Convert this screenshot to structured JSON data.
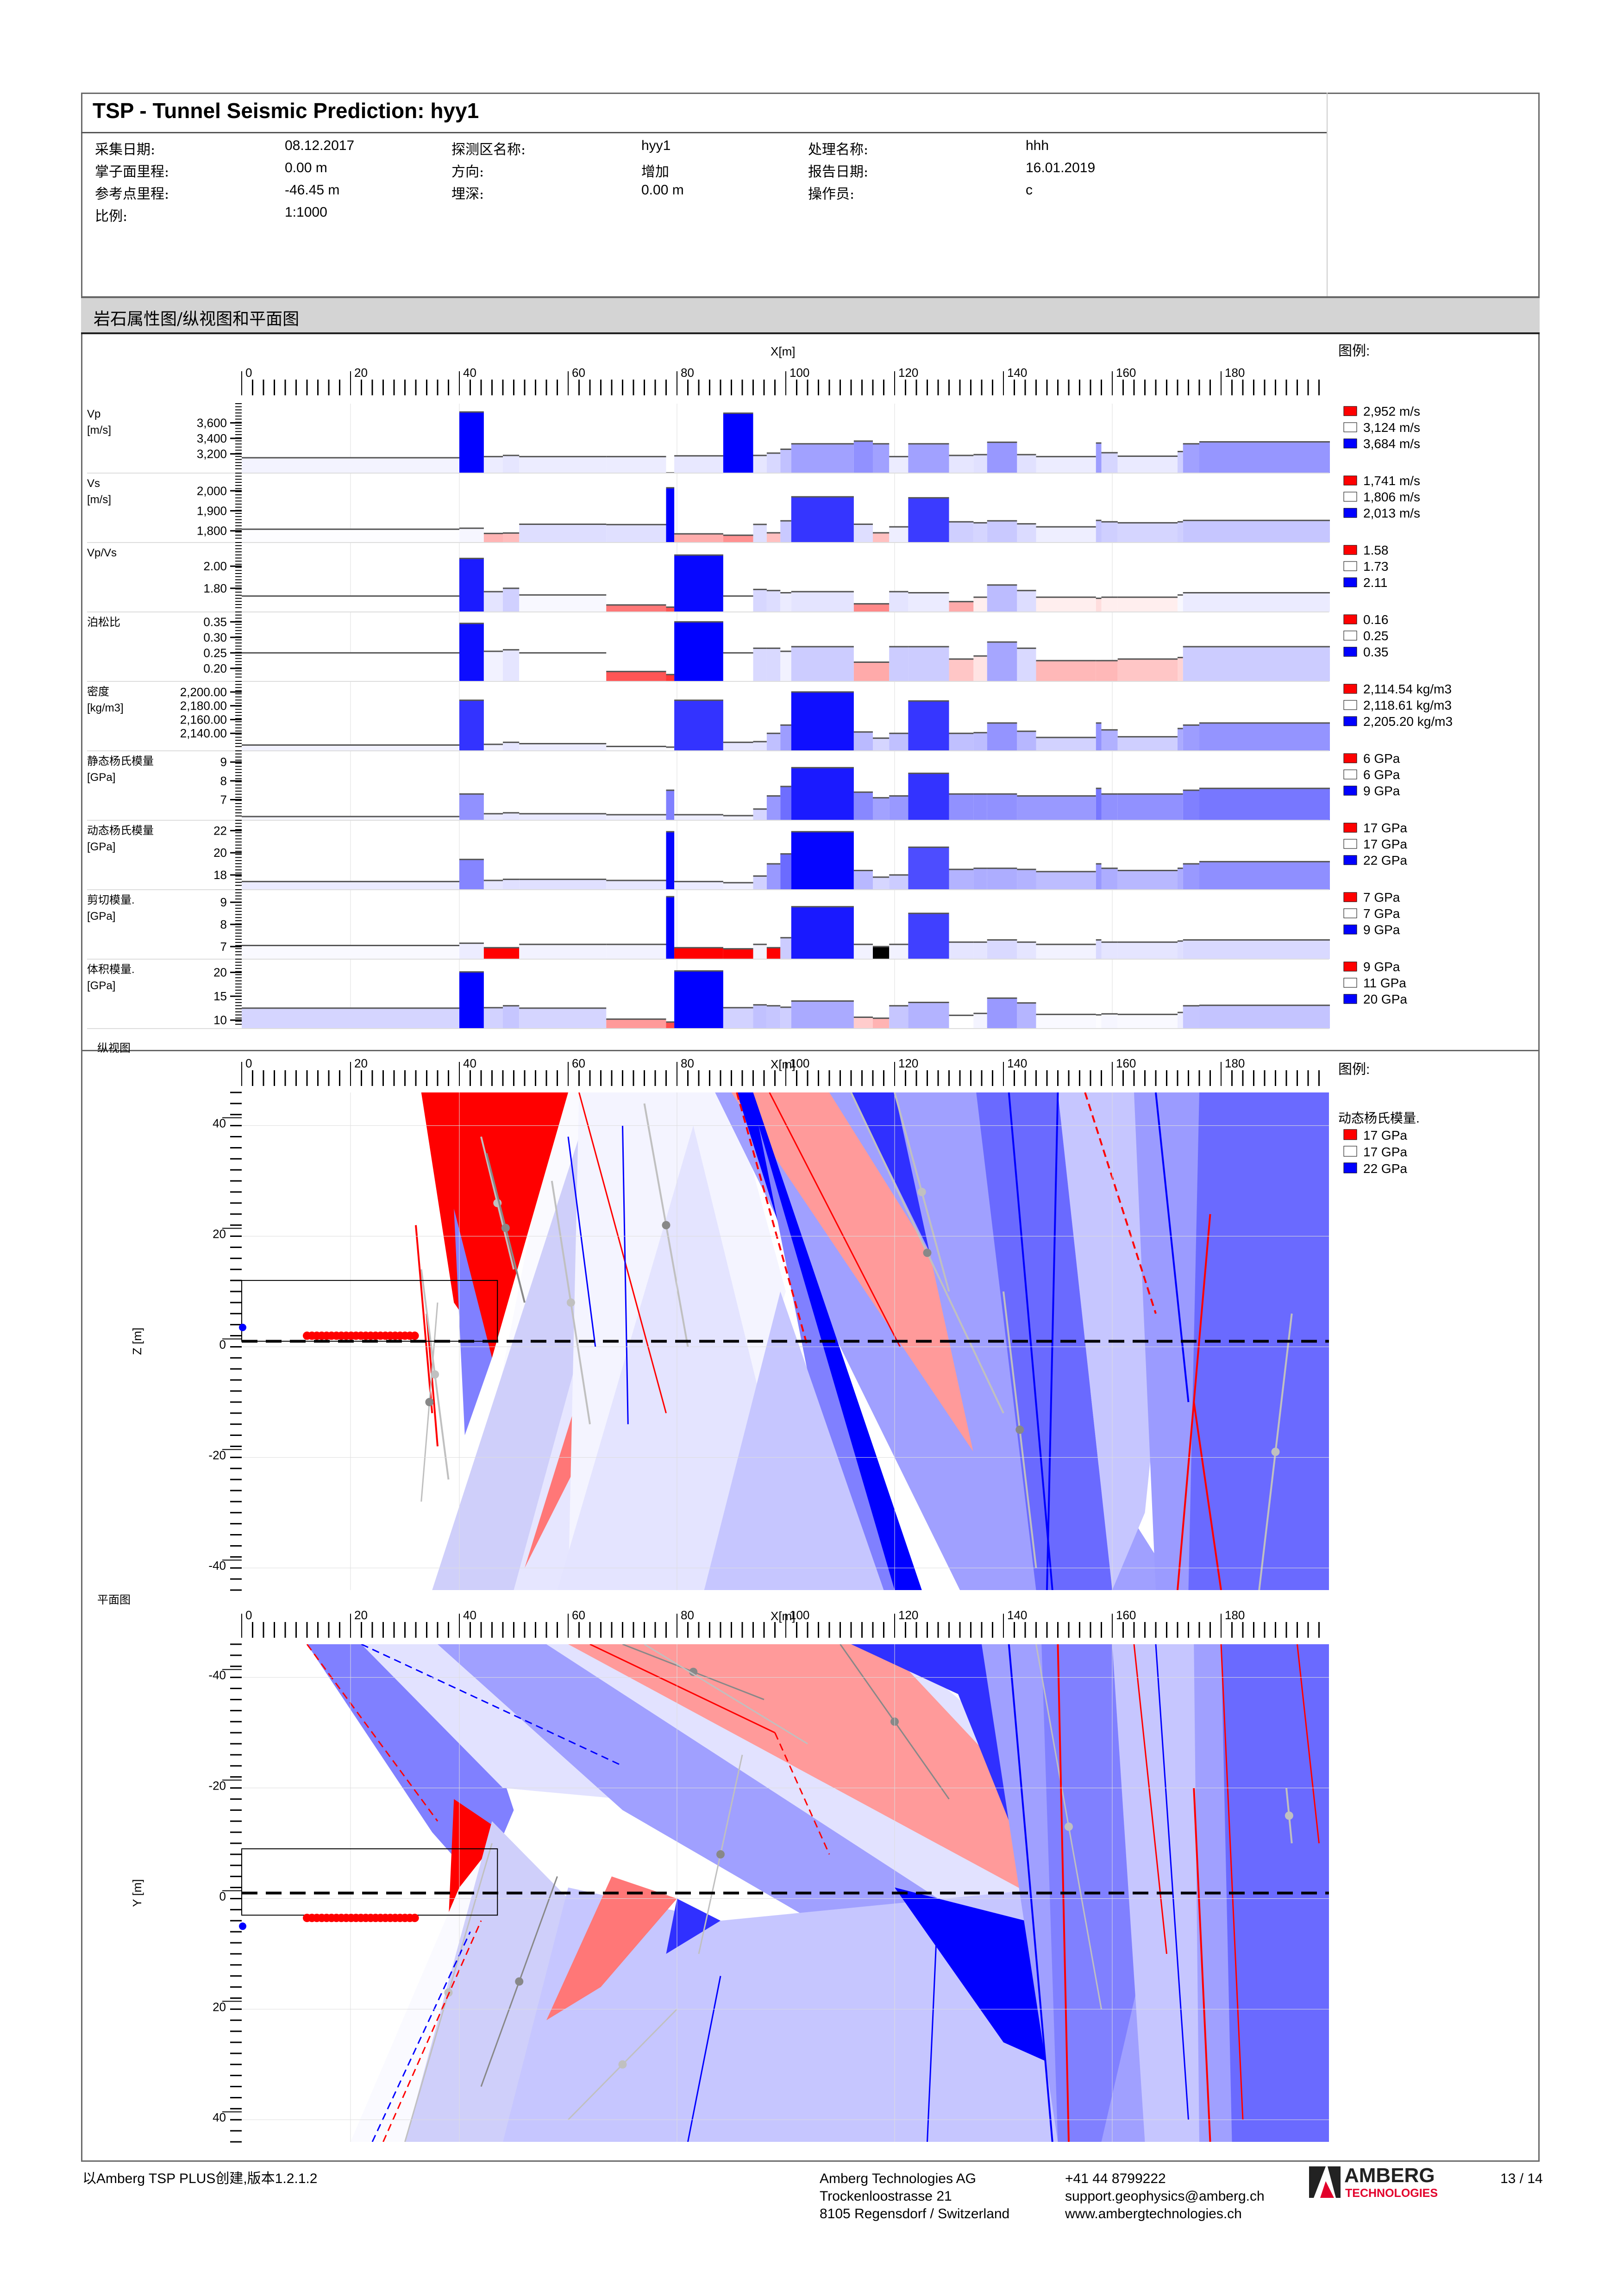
{
  "header": {
    "title": "TSP - Tunnel Seismic Prediction: hyy1",
    "fields": [
      {
        "label": "采集日期:",
        "value": "08.12.2017"
      },
      {
        "label": "掌子面里程:",
        "value": "0.00 m"
      },
      {
        "label": "参考点里程:",
        "value": "-46.45 m"
      },
      {
        "label": "比例:",
        "value": "1:1000"
      },
      {
        "label": "探测区名称:",
        "value": "hyy1"
      },
      {
        "label": "方向:",
        "value": "增加"
      },
      {
        "label": "埋深:",
        "value": "0.00 m"
      },
      {
        "label": "处理名称:",
        "value": "hhh"
      },
      {
        "label": "报告日期:",
        "value": "16.01.2019"
      },
      {
        "label": "操作员:",
        "value": "c"
      }
    ]
  },
  "section_title": "岩石属性图/纵视图和平面图",
  "legend_title": "图例:",
  "xaxis_label": "X[m]",
  "footer": {
    "created_with": "以Amberg TSP PLUS创建,版本1.2.1.2",
    "company": [
      "Amberg Technologies AG",
      "Trockenloostrasse 21",
      "8105 Regensdorf / Switzerland"
    ],
    "contact": [
      "+41 44 8799222",
      "support.geophysics@amberg.ch",
      "www.ambergtechnologies.ch"
    ],
    "logo_text": "AMBERG",
    "logo_sub": "TECHNOLOGIES",
    "page": "13 / 14"
  },
  "colors": {
    "red": "#ff0000",
    "blue": "#0000ff",
    "white": "#ffffff",
    "accent_logo": "#e2002a"
  },
  "chart_data": [
    {
      "type": "bar",
      "title": "岩石属性图",
      "xlabel": "X[m]",
      "xlim": [
        0,
        200
      ],
      "xticks": [
        0,
        20,
        40,
        60,
        80,
        100,
        120,
        140,
        160,
        180
      ],
      "segments_x": [
        [
          0,
          40
        ],
        [
          40,
          44.5
        ],
        [
          44.5,
          48
        ],
        [
          48,
          51
        ],
        [
          51,
          67
        ],
        [
          67,
          78
        ],
        [
          78,
          79.5
        ],
        [
          79.5,
          88.5
        ],
        [
          88.5,
          94
        ],
        [
          94,
          96.5
        ],
        [
          96.5,
          99
        ],
        [
          99,
          101
        ],
        [
          101,
          112.5
        ],
        [
          112.5,
          116
        ],
        [
          116,
          119
        ],
        [
          119,
          122.5
        ],
        [
          122.5,
          130
        ],
        [
          130,
          134.5
        ],
        [
          134.5,
          137
        ],
        [
          137,
          142.5
        ],
        [
          142.5,
          146
        ],
        [
          146,
          157
        ],
        [
          157,
          158
        ],
        [
          158,
          161
        ],
        [
          161,
          172
        ],
        [
          172,
          173
        ],
        [
          173,
          176
        ],
        [
          176,
          200
        ]
      ],
      "panels": [
        {
          "name": "Vp",
          "unit": "[m/s]",
          "yticks": [
            "3,600",
            "3,400",
            "3,200"
          ],
          "ytick_values": [
            3600,
            3400,
            3200
          ],
          "ylim": [
            3000,
            3800
          ],
          "legend": [
            "2,952 m/s",
            "3,124 m/s",
            "3,684 m/s"
          ],
          "values": [
            3150,
            3740,
            3165,
            3180,
            3165,
            3165,
            2955,
            3175,
            3725,
            3180,
            3210,
            3260,
            3330,
            3365,
            3330,
            3165,
            3330,
            3180,
            3190,
            3350,
            3190,
            3165,
            3340,
            3215,
            3170,
            3230,
            3330,
            3355
          ]
        },
        {
          "name": "Vs",
          "unit": "[m/s]",
          "yticks": [
            "2,000",
            "1,900",
            "1,800"
          ],
          "ytick_values": [
            2000,
            1900,
            1800
          ],
          "ylim": [
            1760,
            2070
          ],
          "legend": [
            "1,741 m/s",
            "1,806 m/s",
            "2,013 m/s"
          ],
          "values": [
            1808,
            1813,
            1787,
            1789,
            1833,
            1831,
            2015,
            1785,
            1778,
            1832,
            1790,
            1850,
            1970,
            1833,
            1790,
            1820,
            1965,
            1845,
            1840,
            1850,
            1835,
            1820,
            1852,
            1845,
            1840,
            1845,
            1852,
            1852
          ]
        },
        {
          "name": "Vp/Vs",
          "unit": "",
          "yticks": [
            "2.00",
            "1.80"
          ],
          "ytick_values": [
            2.0,
            1.8
          ],
          "ylim": [
            1.62,
            2.18
          ],
          "legend": [
            "1.58",
            "1.73",
            "2.11"
          ],
          "values": [
            1.73,
            2.07,
            1.77,
            1.8,
            1.74,
            1.65,
            1.63,
            2.1,
            1.73,
            1.79,
            1.78,
            1.76,
            1.77,
            1.66,
            1.66,
            1.77,
            1.76,
            1.68,
            1.72,
            1.83,
            1.78,
            1.72,
            1.71,
            1.72,
            1.72,
            1.74,
            1.76,
            1.76
          ]
        },
        {
          "name": "泊松比",
          "unit": "",
          "yticks": [
            "0.35",
            "0.30",
            "0.25",
            "0.20"
          ],
          "ytick_values": [
            0.35,
            0.3,
            0.25,
            0.2
          ],
          "ylim": [
            0.17,
            0.37
          ],
          "legend": [
            "0.16",
            "0.25",
            "0.35"
          ],
          "values": [
            0.25,
            0.345,
            0.255,
            0.26,
            0.25,
            0.19,
            0.18,
            0.35,
            0.25,
            0.265,
            0.265,
            0.255,
            0.27,
            0.22,
            0.22,
            0.27,
            0.27,
            0.23,
            0.24,
            0.285,
            0.265,
            0.225,
            0.225,
            0.225,
            0.23,
            0.235,
            0.27,
            0.27
          ]
        },
        {
          "name": "密度",
          "unit": "[kg/m3]",
          "yticks": [
            "2,200.00",
            "2,180.00",
            "2,160.00",
            "2,140.00"
          ],
          "ytick_values": [
            2200,
            2180,
            2160,
            2140
          ],
          "ylim": [
            2120,
            2210
          ],
          "legend": [
            "2,114.54 kg/m3",
            "2,118.61 kg/m3",
            "2,205.20 kg/m3"
          ],
          "values": [
            2123,
            2188,
            2124,
            2127,
            2125,
            2121,
            2120,
            2188,
            2127,
            2128,
            2140,
            2152,
            2200,
            2142,
            2133,
            2140,
            2187,
            2140,
            2141,
            2155,
            2143,
            2134,
            2155,
            2145,
            2135,
            2147,
            2152,
            2155
          ]
        },
        {
          "name": "静态杨氏模量",
          "unit": "[GPa]",
          "yticks": [
            "9",
            "8",
            "7"
          ],
          "ytick_values": [
            9,
            8,
            7
          ],
          "ylim": [
            6.1,
            9.4
          ],
          "legend": [
            "6 GPa",
            "6 GPa",
            "9 GPa"
          ],
          "values": [
            6.1,
            7.3,
            6.25,
            6.3,
            6.25,
            6.2,
            7.5,
            6.2,
            6.15,
            6.5,
            7.2,
            7.7,
            8.7,
            7.4,
            7.1,
            7.2,
            8.4,
            7.3,
            7.3,
            7.3,
            7.2,
            7.2,
            7.6,
            7.3,
            7.3,
            7.3,
            7.5,
            7.6
          ]
        },
        {
          "name": "动态杨氏模量",
          "unit": "[GPa]",
          "yticks": [
            "22",
            "20",
            "18"
          ],
          "ytick_values": [
            22,
            20,
            18
          ],
          "ylim": [
            17,
            22.6
          ],
          "legend": [
            "17 GPa",
            "17 GPa",
            "22 GPa"
          ],
          "values": [
            17.4,
            19.4,
            17.5,
            17.6,
            17.6,
            17.5,
            21.9,
            17.4,
            17.3,
            17.9,
            19.0,
            19.9,
            21.9,
            18.4,
            17.8,
            18.0,
            20.5,
            18.5,
            18.6,
            18.6,
            18.5,
            18.3,
            19.0,
            18.6,
            18.4,
            18.6,
            19.0,
            19.2
          ]
        },
        {
          "name": "剪切模量.",
          "unit": "[GPa]",
          "yticks": [
            "9",
            "8",
            "7"
          ],
          "ytick_values": [
            9,
            8,
            7
          ],
          "ylim": [
            6.6,
            9.4
          ],
          "legend": [
            "7 GPa",
            "7 GPa",
            "9 GPa"
          ],
          "values": [
            7.05,
            7.15,
            6.95,
            6.95,
            7.1,
            7.1,
            9.25,
            6.95,
            6.9,
            7.1,
            6.95,
            7.4,
            8.8,
            7.1,
            7.0,
            7.1,
            8.5,
            7.2,
            7.2,
            7.3,
            7.2,
            7.1,
            7.3,
            7.2,
            7.2,
            7.25,
            7.3,
            7.3
          ]
        },
        {
          "name": "体积模量.",
          "unit": "[GPa]",
          "yticks": [
            "20",
            "15",
            "10"
          ],
          "ytick_values": [
            20,
            15,
            10
          ],
          "ylim": [
            9,
            22
          ],
          "legend": [
            "9 GPa",
            "11 GPa",
            "20 GPa"
          ],
          "values": [
            12.5,
            20.1,
            12.6,
            13.0,
            12.5,
            10.2,
            9.6,
            20.3,
            12.6,
            13.2,
            13.0,
            12.7,
            14.0,
            10.6,
            10.4,
            13.0,
            13.7,
            11.0,
            11.4,
            14.6,
            13.6,
            11.2,
            11.1,
            11.3,
            11.2,
            11.6,
            13.0,
            13.1
          ]
        }
      ]
    },
    {
      "type": "area",
      "title": "纵视图",
      "xlabel": "X[m]",
      "ylabel": "Z [m]",
      "xlim": [
        0,
        200
      ],
      "ylim": [
        -44,
        46
      ],
      "xticks": [
        0,
        20,
        40,
        60,
        80,
        100,
        120,
        140,
        160,
        180
      ],
      "yticks": [
        40,
        20,
        0,
        -20,
        -40
      ],
      "legend_title": "动态杨氏模量.",
      "legend": [
        "17 GPa",
        "17 GPa",
        "22 GPa"
      ],
      "tunnel_axis_z": 1,
      "source_points_x_range": [
        12,
        47
      ],
      "receiver_x": 0
    },
    {
      "type": "area",
      "title": "平面图",
      "xlabel": "X[m]",
      "ylabel": "Y [m]",
      "xlim": [
        0,
        200
      ],
      "ylim": [
        -46,
        44
      ],
      "xticks": [
        0,
        20,
        40,
        60,
        80,
        100,
        120,
        140,
        160,
        180
      ],
      "yticks": [
        -40,
        -20,
        0,
        20,
        40
      ],
      "tunnel_axis_y": -1,
      "source_points_x_range": [
        12,
        47
      ],
      "receiver_x": 0
    }
  ]
}
